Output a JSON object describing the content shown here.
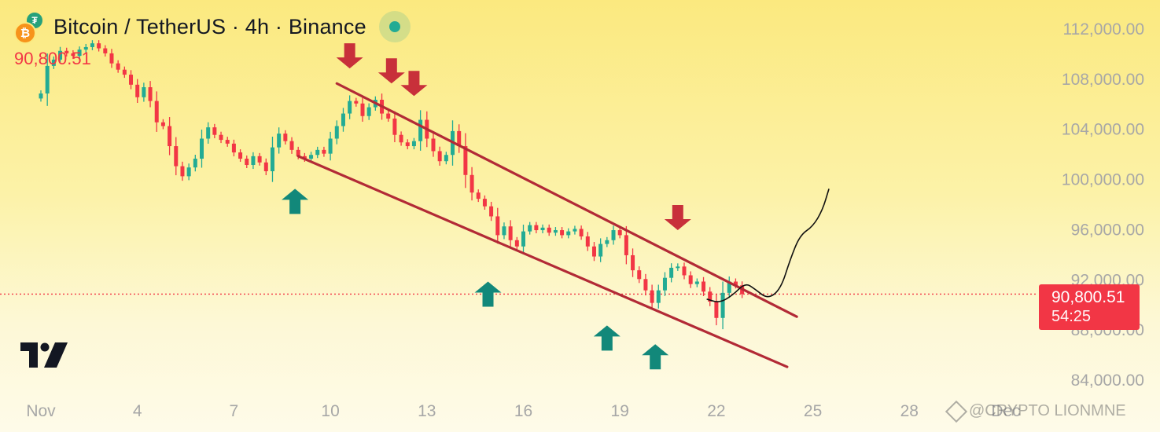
{
  "header": {
    "title": "Bitcoin / TetherUS · 4h · Binance",
    "base_coin_icon": "bitcoin-coin-icon",
    "quote_coin_icon": "tether-coin-icon",
    "live_indicator": "market-open-dot-icon",
    "last_price": "90,800.51"
  },
  "price_tag": {
    "price": "90,800.51",
    "countdown": "54:25"
  },
  "watermark": {
    "text": "@CRYPTO LIONMNE",
    "icon": "binance-diamond-icon"
  },
  "logo": {
    "name": "tradingview-logo-icon"
  },
  "colors": {
    "up": "#22ab94",
    "down": "#f23645",
    "channel": "#b22a36",
    "arrow_down": "#c8303a",
    "arrow_up": "#12887a",
    "projection": "#111111",
    "price_line": "#f23645"
  },
  "chart_data": {
    "type": "candlestick",
    "title": "Bitcoin / TetherUS · 4h · Binance",
    "interval": "4h",
    "x_ticks": [
      "Nov",
      "4",
      "7",
      "10",
      "13",
      "16",
      "19",
      "22",
      "25",
      "28",
      "Dec"
    ],
    "y_ticks": [
      "112,000.00",
      "108,000.00",
      "104,000.00",
      "100,000.00",
      "96,000.00",
      "92,000.00",
      "88,000.00",
      "84,000.00"
    ],
    "ylim": [
      82000,
      114000
    ],
    "x_range_days": [
      1,
      31
    ],
    "last_price": 90800.51,
    "series_close": [
      [
        1.0,
        106800
      ],
      [
        1.2,
        109000
      ],
      [
        1.4,
        109500
      ],
      [
        1.6,
        110200
      ],
      [
        1.8,
        110000
      ],
      [
        2.0,
        109800
      ],
      [
        2.2,
        110300
      ],
      [
        2.4,
        110500
      ],
      [
        2.6,
        110800
      ],
      [
        2.8,
        110400
      ],
      [
        3.0,
        110000
      ],
      [
        3.2,
        109200
      ],
      [
        3.4,
        108700
      ],
      [
        3.6,
        108300
      ],
      [
        3.8,
        107500
      ],
      [
        4.0,
        106500
      ],
      [
        4.2,
        107300
      ],
      [
        4.4,
        106200
      ],
      [
        4.6,
        104500
      ],
      [
        4.8,
        104200
      ],
      [
        5.0,
        102600
      ],
      [
        5.2,
        101000
      ],
      [
        5.4,
        100200
      ],
      [
        5.6,
        100900
      ],
      [
        5.8,
        101600
      ],
      [
        6.0,
        103200
      ],
      [
        6.2,
        104100
      ],
      [
        6.4,
        103500
      ],
      [
        6.6,
        103100
      ],
      [
        6.8,
        102800
      ],
      [
        7.0,
        102100
      ],
      [
        7.2,
        101600
      ],
      [
        7.4,
        101100
      ],
      [
        7.6,
        101800
      ],
      [
        7.8,
        101300
      ],
      [
        8.0,
        100600
      ],
      [
        8.2,
        102500
      ],
      [
        8.4,
        103600
      ],
      [
        8.6,
        103000
      ],
      [
        8.8,
        102300
      ],
      [
        9.0,
        101800
      ],
      [
        9.2,
        101600
      ],
      [
        9.4,
        101900
      ],
      [
        9.6,
        102300
      ],
      [
        9.8,
        102000
      ],
      [
        10.0,
        103200
      ],
      [
        10.2,
        104200
      ],
      [
        10.4,
        105200
      ],
      [
        10.6,
        106200
      ],
      [
        10.8,
        106000
      ],
      [
        11.0,
        105000
      ],
      [
        11.2,
        105700
      ],
      [
        11.4,
        106300
      ],
      [
        11.6,
        105200
      ],
      [
        11.8,
        104800
      ],
      [
        12.0,
        103500
      ],
      [
        12.2,
        102900
      ],
      [
        12.4,
        102600
      ],
      [
        12.6,
        103000
      ],
      [
        12.8,
        104700
      ],
      [
        13.0,
        103200
      ],
      [
        13.2,
        102200
      ],
      [
        13.4,
        101400
      ],
      [
        13.6,
        101900
      ],
      [
        13.8,
        103800
      ],
      [
        14.0,
        102600
      ],
      [
        14.2,
        100300
      ],
      [
        14.4,
        98900
      ],
      [
        14.6,
        98400
      ],
      [
        14.8,
        97800
      ],
      [
        15.0,
        97000
      ],
      [
        15.2,
        95500
      ],
      [
        15.4,
        96200
      ],
      [
        15.6,
        95100
      ],
      [
        15.8,
        94600
      ],
      [
        16.0,
        95800
      ],
      [
        16.2,
        96300
      ],
      [
        16.4,
        95900
      ],
      [
        16.6,
        96100
      ],
      [
        16.8,
        95700
      ],
      [
        17.0,
        95900
      ],
      [
        17.2,
        95500
      ],
      [
        17.4,
        95800
      ],
      [
        17.6,
        96000
      ],
      [
        17.8,
        95400
      ],
      [
        18.0,
        94600
      ],
      [
        18.2,
        93800
      ],
      [
        18.4,
        94800
      ],
      [
        18.6,
        95100
      ],
      [
        18.8,
        95900
      ],
      [
        19.0,
        95500
      ],
      [
        19.2,
        93900
      ],
      [
        19.4,
        92700
      ],
      [
        19.6,
        92000
      ],
      [
        19.8,
        91100
      ],
      [
        20.0,
        90100
      ],
      [
        20.2,
        91100
      ],
      [
        20.4,
        92100
      ],
      [
        20.6,
        92900
      ],
      [
        20.8,
        93000
      ],
      [
        21.0,
        92300
      ],
      [
        21.2,
        91600
      ],
      [
        21.4,
        91800
      ],
      [
        21.6,
        91000
      ],
      [
        21.8,
        90200
      ],
      [
        22.0,
        88900
      ],
      [
        22.2,
        90900
      ],
      [
        22.4,
        91800
      ],
      [
        22.6,
        91500
      ],
      [
        22.8,
        90800
      ]
    ],
    "annotations": {
      "channel_upper": [
        [
          10.2,
          107600
        ],
        [
          24.5,
          89000
        ]
      ],
      "channel_lower": [
        [
          9.0,
          101800
        ],
        [
          24.2,
          85000
        ]
      ],
      "projection": [
        [
          21.7,
          90400
        ],
        [
          22.1,
          90100
        ],
        [
          22.5,
          90700
        ],
        [
          22.9,
          91700
        ],
        [
          23.2,
          91200
        ],
        [
          23.6,
          90400
        ],
        [
          24.0,
          91200
        ],
        [
          24.3,
          93600
        ],
        [
          24.6,
          95500
        ],
        [
          25.0,
          96200
        ],
        [
          25.3,
          97500
        ],
        [
          25.5,
          99200
        ]
      ],
      "down_arrows": [
        [
          10.6,
          108800
        ],
        [
          11.9,
          107600
        ],
        [
          12.6,
          106600
        ],
        [
          20.8,
          95900
        ]
      ],
      "up_arrows": [
        [
          8.9,
          99200
        ],
        [
          14.9,
          91800
        ],
        [
          18.6,
          88300
        ],
        [
          20.1,
          86800
        ]
      ]
    }
  }
}
